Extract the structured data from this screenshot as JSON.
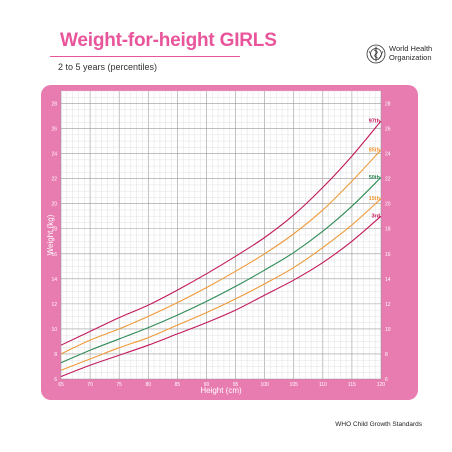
{
  "header": {
    "title": "Weight-for-height GIRLS",
    "subtitle": "2 to 5 years (percentiles)",
    "org_line1": "World Health",
    "org_line2": "Organization",
    "logo_icon": "who-emblem-icon"
  },
  "footer": {
    "text": "WHO Child Growth Standards"
  },
  "colors": {
    "frame": "#e87bb0",
    "title": "#e8559a",
    "grid_major": "#9a9a9a",
    "grid_minor": "#d6d6d6",
    "p97": "#c2185b",
    "p85": "#ef9a3a",
    "p50": "#2e8b57",
    "p15": "#ef9a3a",
    "p3": "#c2185b"
  },
  "chart_data": {
    "type": "line",
    "xlabel": "Height (cm)",
    "ylabel": "Weight (kg)",
    "xlim": [
      65,
      120
    ],
    "ylim": [
      6,
      29
    ],
    "x_ticks": [
      65,
      70,
      75,
      80,
      85,
      90,
      95,
      100,
      105,
      110,
      115,
      120
    ],
    "y_ticks": [
      6,
      8,
      10,
      12,
      14,
      16,
      18,
      20,
      22,
      24,
      26,
      28
    ],
    "grid": true,
    "series": [
      {
        "name": "97th",
        "x": [
          65,
          70,
          75,
          80,
          85,
          90,
          95,
          100,
          105,
          110,
          115,
          120
        ],
        "values": [
          8.7,
          9.8,
          10.9,
          11.9,
          13.1,
          14.4,
          15.8,
          17.3,
          19.1,
          21.3,
          23.8,
          26.6
        ]
      },
      {
        "name": "85th",
        "x": [
          65,
          70,
          75,
          80,
          85,
          90,
          95,
          100,
          105,
          110,
          115,
          120
        ],
        "values": [
          8.0,
          9.1,
          10.0,
          11.0,
          12.1,
          13.3,
          14.6,
          16.0,
          17.6,
          19.5,
          21.8,
          24.3
        ]
      },
      {
        "name": "50th",
        "x": [
          65,
          70,
          75,
          80,
          85,
          90,
          95,
          100,
          105,
          110,
          115,
          120
        ],
        "values": [
          7.3,
          8.3,
          9.2,
          10.1,
          11.1,
          12.2,
          13.4,
          14.7,
          16.1,
          17.8,
          19.8,
          22.1
        ]
      },
      {
        "name": "15th",
        "x": [
          65,
          70,
          75,
          80,
          85,
          90,
          95,
          100,
          105,
          110,
          115,
          120
        ],
        "values": [
          6.7,
          7.6,
          8.5,
          9.3,
          10.3,
          11.3,
          12.4,
          13.6,
          14.9,
          16.5,
          18.3,
          20.4
        ]
      },
      {
        "name": "3rd",
        "x": [
          65,
          70,
          75,
          80,
          85,
          90,
          95,
          100,
          105,
          110,
          115,
          120
        ],
        "values": [
          6.2,
          7.1,
          7.9,
          8.7,
          9.6,
          10.5,
          11.5,
          12.7,
          13.9,
          15.3,
          17.0,
          19.0
        ]
      }
    ]
  }
}
